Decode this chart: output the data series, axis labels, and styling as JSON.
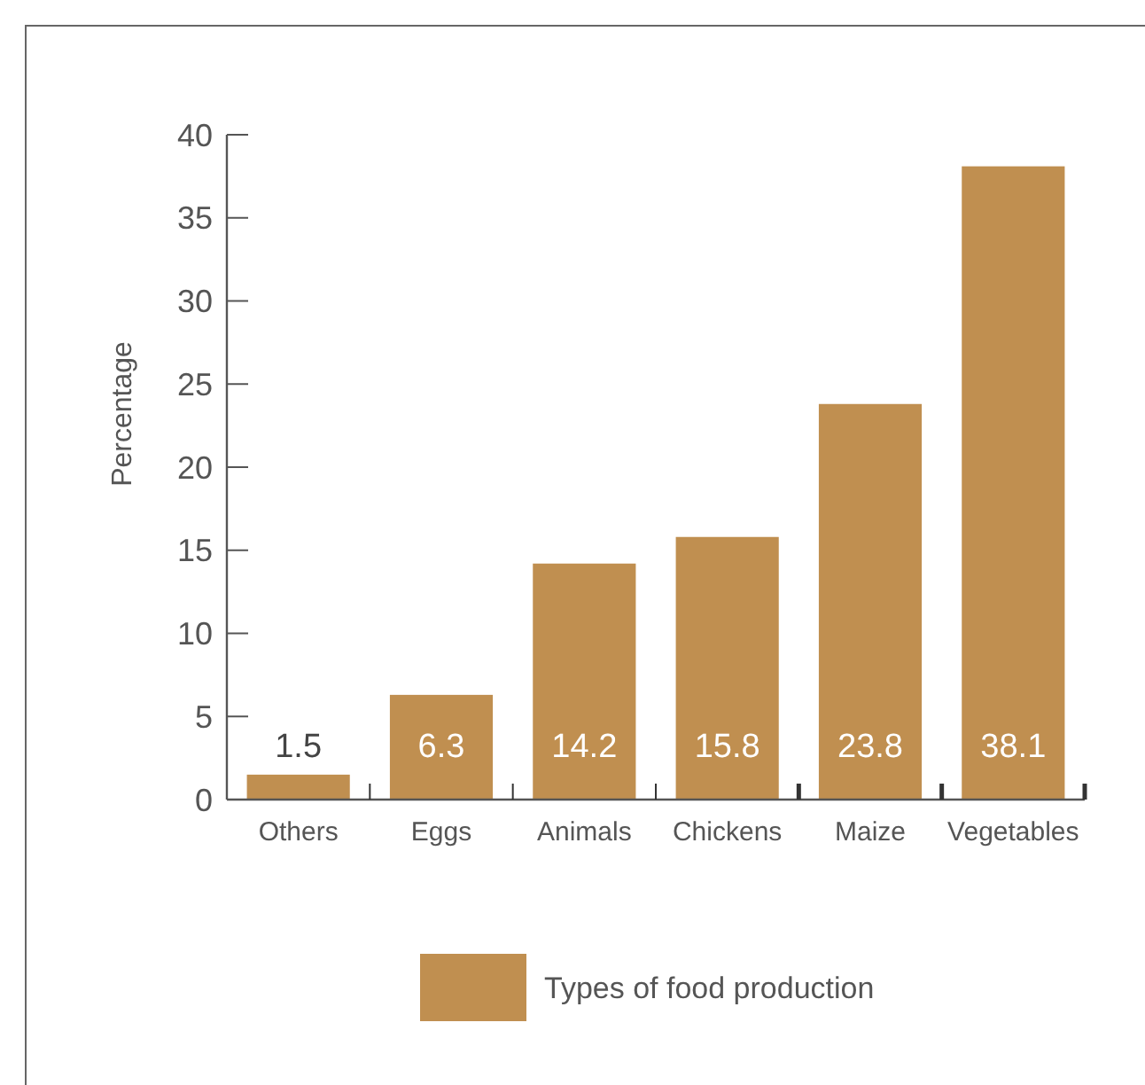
{
  "chart_data": {
    "type": "bar",
    "ylabel": "Percentage",
    "categories": [
      "Others",
      "Eggs",
      "Animals",
      "Chickens",
      "Maize",
      "Vegetables"
    ],
    "series": [
      {
        "name": "Types of food production",
        "color": "#c08f50",
        "values": [
          1.5,
          6.3,
          14.2,
          15.8,
          23.8,
          38.1
        ]
      }
    ],
    "ylim": [
      0,
      40
    ],
    "yticks": [
      0,
      5,
      10,
      15,
      20,
      25,
      30,
      35,
      40
    ],
    "data_labels": true,
    "legend": "bottom",
    "grid": false
  }
}
